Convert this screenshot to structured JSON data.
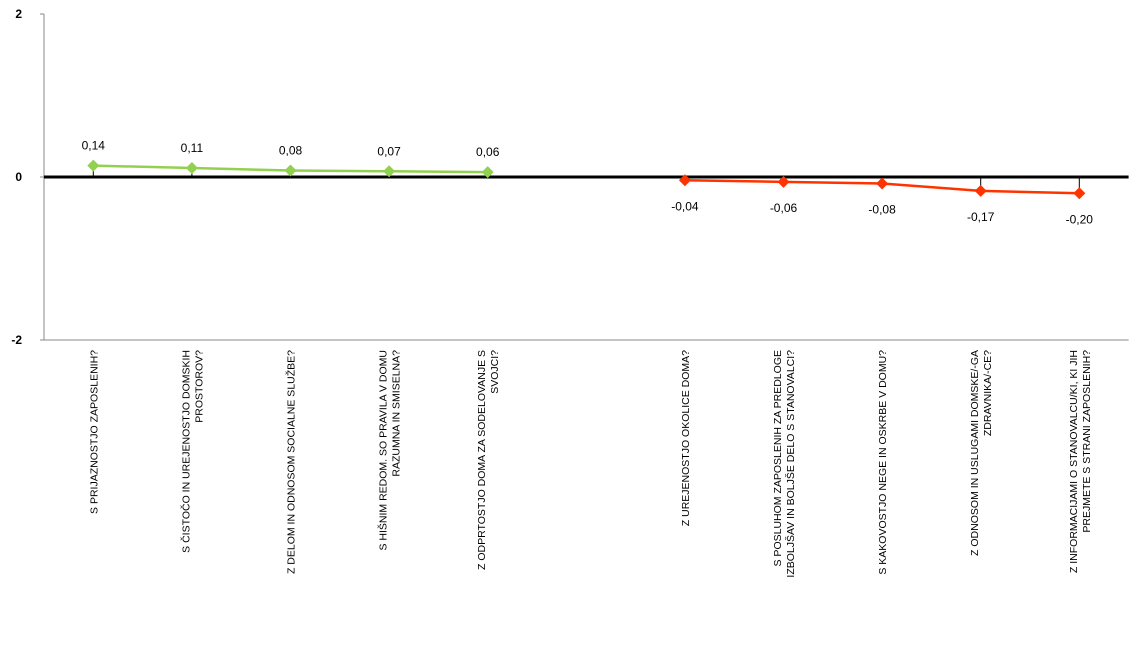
{
  "chart_data": {
    "type": "line",
    "categories": [
      "S PRIJAZNOSTJO ZAPOSLENIH?",
      "S ČISTOČO IN UREJENOSTJO DOMSKIH PROSTOROV?",
      "Z DELOM IN ODNOSOM SOCIALNE SLUŽBE?",
      "S HIŠNIM REDOM. SO PRAVILA V DOMU RAZUMNA IN SMISELNA?",
      "Z ODPRTOSTJO DOMA ZA SODELOVANJE S SVOJCI?",
      null,
      "Z UREJENOSTJO OKOLICE DOMA?",
      "S POSLUHOM ZAPOSLENIH ZA PREDLOGE IZBOLJŠAV IN BOLJŠE DELO S STANOVALCI?",
      "S KAKOVOSTJO NEGE IN OSKRBE V DOMU?",
      "Z ODNOSOM IN USLUGAMI DOMSKE/-GA ZDRAVNIKA/-CE?",
      "Z INFORMACIJAMI O STANOVALCU/KI, KI JIH PREJMETE S STRANI ZAPOSLENIH?"
    ],
    "series": [
      {
        "color": "#92d050",
        "values": [
          0.14,
          0.11,
          0.08,
          0.07,
          0.06,
          null,
          null,
          null,
          null,
          null,
          null
        ],
        "value_labels": [
          "0,14",
          "0,11",
          "0,08",
          "0,07",
          "0,06",
          null,
          null,
          null,
          null,
          null,
          null
        ]
      },
      {
        "color": "#ff3300",
        "values": [
          null,
          null,
          null,
          null,
          null,
          null,
          -0.04,
          -0.06,
          -0.08,
          -0.17,
          -0.2
        ],
        "value_labels": [
          null,
          null,
          null,
          null,
          null,
          null,
          "-0,04",
          "-0,06",
          "-0,08",
          "-0,17",
          "-0,20"
        ]
      }
    ],
    "ylim": [
      -2,
      2
    ],
    "yticks": [
      -2,
      0,
      2
    ]
  }
}
